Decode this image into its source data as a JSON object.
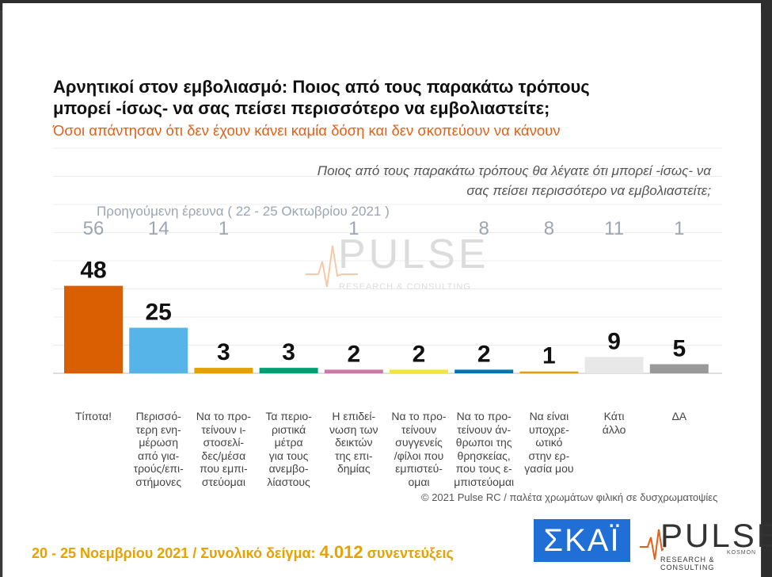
{
  "title": "Αρνητικοί στον εμβολιασμό: Ποιος από τους παρακάτω τρόπους μπορεί -ίσως- να σας πείσει περισσότερο να εμβολιαστείτε;",
  "subtitle": "Όσοι απάντησαν ότι δεν έχουν κάνει καμία δόση και δεν σκοπεύουν να κάνουν",
  "question": "Ποιος από τους παρακάτω τρόπους θα λέγατε ότι μπορεί -ίσως- να σας πείσει περισσότερο να εμβολιαστείτε;",
  "previous_survey_label": "Προηγούμενη έρευνα  ( 22 - 25 Οκτωβρίου 2021 )",
  "watermark": {
    "name": "PULSE",
    "tagline": "RESEARCH & CONSULTING"
  },
  "copyright": "© 2021 Pulse RC  /  παλέτα χρωμάτων φιλική σε δυσχρωματοψίες",
  "footer": {
    "dates": "20 - 25  Νοεμβρίου 2021",
    "separator": " /  ",
    "sample_label": "Συνολικό δείγμα: ",
    "sample_value": "4.012",
    "sample_suffix": " συνεντεύξεις"
  },
  "logos": {
    "skai": "ΣΚΑΪ",
    "pulse": "PULSE",
    "pulse_kosmon": "KOSMON",
    "pulse_sub": "RESEARCH & CONSULTING"
  },
  "chart_data": {
    "type": "bar",
    "categories": [
      "Τίποτα!",
      "Περισσό-τερη ενη-μέρωση από για-τρούς/επι-στήμονες",
      "Να το προ-τείνουν ι-στοσελί-δες/μέσα που εμπι-στεύομαι",
      "Τα περιο-ριστικά μέτρα για τους ανεμβο-λίαστους",
      "Η επιδεί-νωση των δεικτών της επι-δημίας",
      "Να το προ-τείνουν συγγενείς /φίλοι που εμπιστεύ-ομαι",
      "Να το προ-τείνουν άν-θρωποι της θρησκείας, που τους ε-μπιστεύομαι",
      "Να είναι υποχρε-ωτικό στην ερ-γασία μου",
      "Κάτι άλλο",
      "ΔΑ"
    ],
    "category_lines": [
      [
        "Τίποτα!"
      ],
      [
        "Περισσό-",
        "τερη ενη-",
        "μέρωση",
        "από για-",
        "τρούς/επι-",
        "στήμονες"
      ],
      [
        "Να το προ-",
        "τείνουν ι-",
        "στοσελί-",
        "δες/μέσα",
        "που εμπι-",
        "στεύομαι"
      ],
      [
        "Τα περιο-",
        "ριστικά",
        "μέτρα",
        "για τους",
        "ανεμβο-",
        "λίαστους"
      ],
      [
        "Η επιδεί-",
        "νωση των",
        "δεικτών",
        "της επι-",
        "δημίας"
      ],
      [
        "Να το προ-",
        "τείνουν",
        "συγγενείς",
        "/φίλοι που",
        "εμπιστεύ-",
        "ομαι"
      ],
      [
        "Να το προ-",
        "τείνουν άν-",
        "θρωποι της",
        "θρησκείας,",
        "που τους ε-",
        "μπιστεύομαι"
      ],
      [
        "Να είναι",
        "υποχρε-",
        "ωτικό",
        "στην ερ-",
        "γασία μου"
      ],
      [
        "Κάτι",
        "άλλο"
      ],
      [
        "ΔΑ"
      ]
    ],
    "series": [
      {
        "name": "20 - 25 Νοεμβρίου 2021",
        "values": [
          48,
          25,
          3,
          3,
          2,
          2,
          2,
          1,
          9,
          5
        ]
      },
      {
        "name": "Προηγούμενη έρευνα ( 22 - 25 Οκτωβρίου 2021 )",
        "values": [
          56,
          14,
          1,
          null,
          1,
          null,
          8,
          8,
          11,
          1
        ]
      }
    ],
    "colors": [
      "#d95f02",
      "#56b4e9",
      "#e6a100",
      "#009e73",
      "#cc79a7",
      "#f0e442",
      "#0072b2",
      "#e69f00",
      "#e8e8e8",
      "#999999"
    ],
    "ylim": [
      0,
      100
    ],
    "grid": true
  }
}
